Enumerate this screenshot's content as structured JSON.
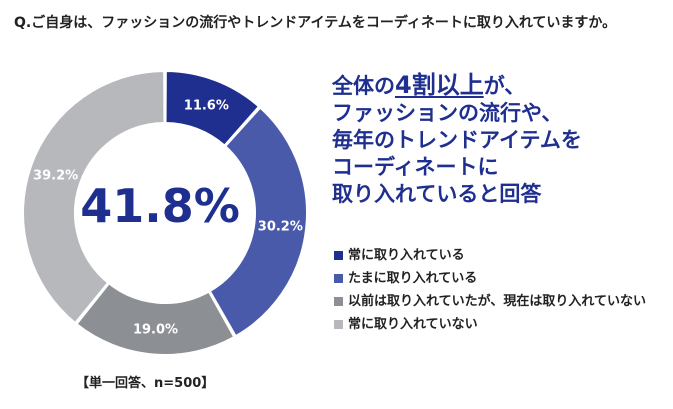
{
  "question": "Q.ご自身は、ファッションの流行やトレンドアイテムをコーディネートに取り入れていますか。",
  "center_label": "41.8%",
  "headline": {
    "line1_a": "全体の",
    "line1_b": "4割以上",
    "line1_c": "が、",
    "line2": "ファッションの流行や、",
    "line3": "毎年のトレンドアイテムを",
    "line4": "コーディネートに",
    "line5": "取り入れていると回答"
  },
  "footnote": "【単一回答、n=500】",
  "chart_data": {
    "type": "pie",
    "donut": true,
    "categories": [
      "常に取り入れている",
      "たまに取り入れている",
      "以前は取り入れていたが、現在は取り入れていない",
      "常に取り入れていない"
    ],
    "values": [
      11.6,
      30.2,
      19.0,
      39.2
    ],
    "labels": [
      "11.6%",
      "30.2%",
      "19.0%",
      "39.2%"
    ],
    "colors": [
      "#1f2f8f",
      "#4a5aab",
      "#8c8f94",
      "#b6b8bc"
    ],
    "label_colors": [
      "#ffffff",
      "#ffffff",
      "#ffffff",
      "#ffffff"
    ],
    "legend_position": "right"
  }
}
